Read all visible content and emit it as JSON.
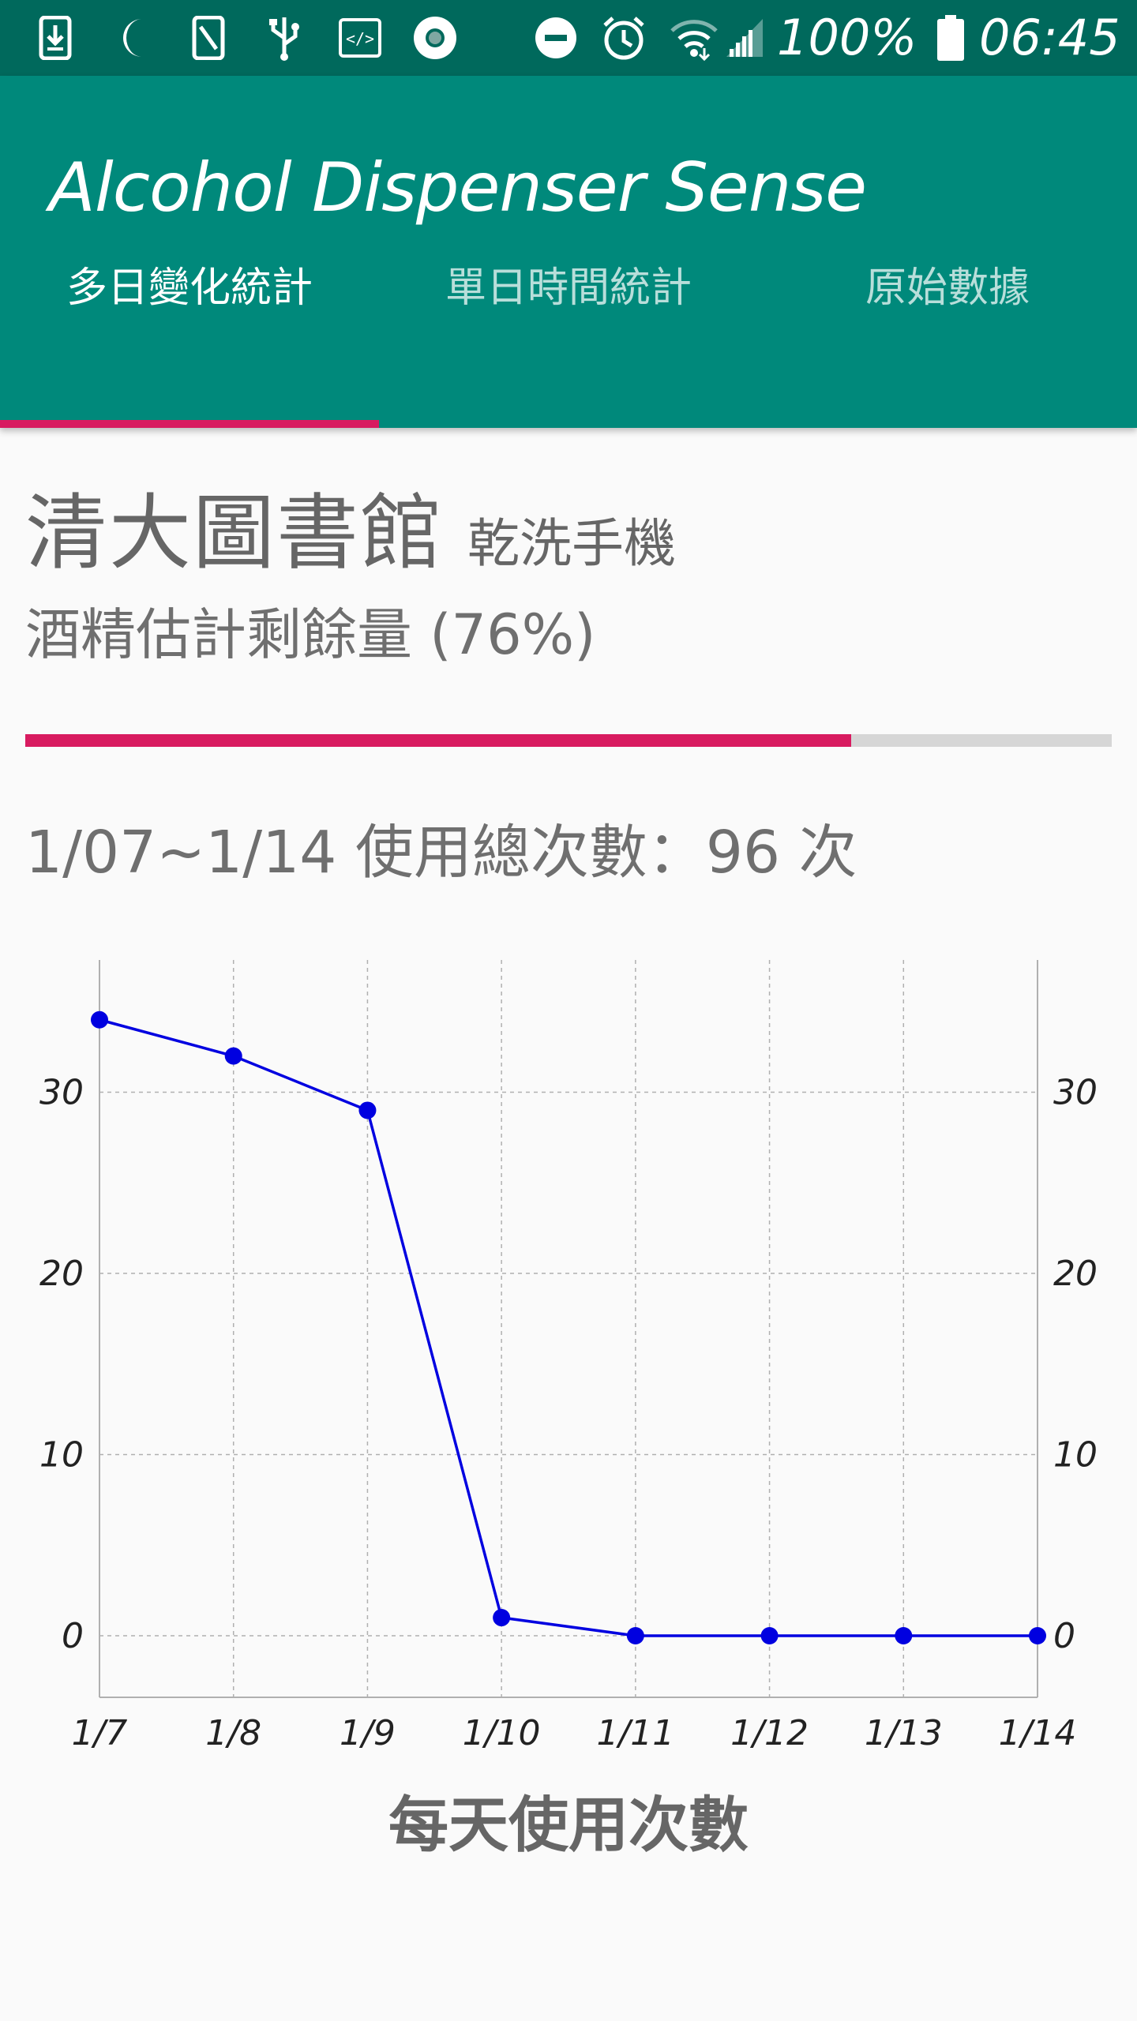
{
  "status_bar": {
    "battery_text": "100%",
    "time": "06:45",
    "icons": [
      "download-icon",
      "moon-icon",
      "phone-icon",
      "usb-icon",
      "code-icon",
      "record-icon",
      "do-not-disturb-icon",
      "alarm-icon",
      "wifi-icon",
      "signal-icon",
      "battery-icon"
    ]
  },
  "app_bar": {
    "title": "Alcohol Dispenser Sense",
    "tabs": [
      {
        "label": "多日變化統計",
        "active": true
      },
      {
        "label": "單日時間統計",
        "active": false
      },
      {
        "label": "原始數據",
        "active": false
      }
    ],
    "accent_color": "#d81b60",
    "primary_color": "#00897b",
    "status_color": "#00695c"
  },
  "location": {
    "name": "清大圖書館",
    "device": "乾洗手機"
  },
  "remaining": {
    "text": "酒精估計剩餘量 (76%)",
    "fraction": 0.76
  },
  "usage_total": {
    "text": "1/07~1/14 使用總次數：96 次"
  },
  "chart_data": {
    "type": "line",
    "title": "每天使用次數",
    "categories": [
      "1/7",
      "1/8",
      "1/9",
      "1/10",
      "1/11",
      "1/12",
      "1/13",
      "1/14"
    ],
    "series": [
      {
        "values": [
          34,
          32,
          29,
          1,
          0,
          0,
          0,
          0
        ],
        "color": "#0000e0"
      }
    ],
    "yticks": [
      0,
      10,
      20,
      30
    ],
    "ylim": [
      -3.4,
      37.3
    ],
    "grid": true,
    "xlabel": "",
    "ylabel": ""
  }
}
